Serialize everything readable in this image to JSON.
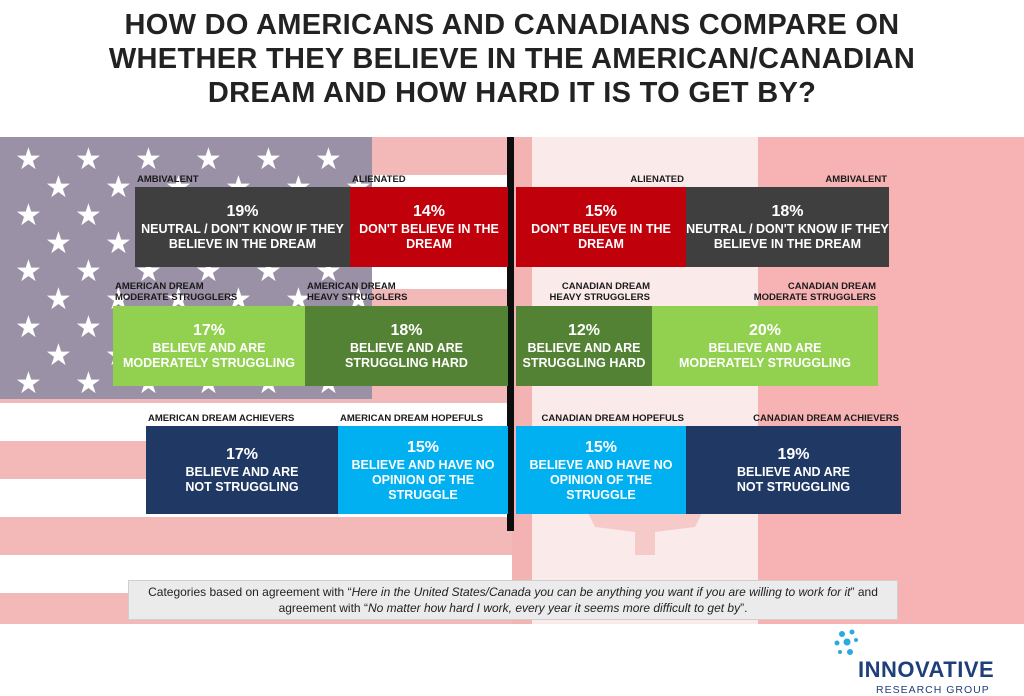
{
  "title": "HOW DO AMERICANS AND CANADIANS COMPARE ON WHETHER THEY BELIEVE IN THE AMERICAN/CANADIAN DREAM AND HOW HARD IT IS TO GET BY?",
  "colors": {
    "ambivalent": "#3f3f3f",
    "alienated": "#c0000b",
    "heavy_strugglers": "#548235",
    "moderate_strugglers": "#92d050",
    "achievers": "#203864",
    "hopefuls": "#00b0f0"
  },
  "chart_data": {
    "type": "bar",
    "orientation": "horizontal-stacked",
    "unit": "%",
    "countries": [
      "United States",
      "Canada"
    ],
    "rows": [
      {
        "usa": [
          {
            "label": "AMBIVALENT",
            "value": 19,
            "display": "19%",
            "desc": "NEUTRAL / DON'T KNOW IF THEY\nBELIEVE IN THE DREAM",
            "color_key": "ambivalent"
          },
          {
            "label": "ALIENATED",
            "value": 14,
            "display": "14%",
            "desc": "DON'T BELIEVE IN THE\nDREAM",
            "color_key": "alienated"
          }
        ],
        "canada": [
          {
            "label": "ALIENATED",
            "value": 15,
            "display": "15%",
            "desc": "DON'T BELIEVE IN THE\nDREAM",
            "color_key": "alienated"
          },
          {
            "label": "AMBIVALENT",
            "value": 18,
            "display": "18%",
            "desc": "NEUTRAL / DON'T KNOW IF THEY\nBELIEVE IN THE DREAM",
            "color_key": "ambivalent"
          }
        ]
      },
      {
        "usa": [
          {
            "label": "AMERICAN DREAM\nMODERATE STRUGGLERS",
            "value": 17,
            "display": "17%",
            "desc": "BELIEVE AND ARE\nMODERATELY STRUGGLING",
            "color_key": "moderate_strugglers"
          },
          {
            "label": "AMERICAN DREAM\nHEAVY STRUGGLERS",
            "value": 18,
            "display": "18%",
            "desc": "BELIEVE AND ARE\nSTRUGGLING HARD",
            "color_key": "heavy_strugglers"
          }
        ],
        "canada": [
          {
            "label": "CANADIAN DREAM\nHEAVY STRUGGLERS",
            "value": 12,
            "display": "12%",
            "desc": "BELIEVE AND ARE\nSTRUGGLING HARD",
            "color_key": "heavy_strugglers"
          },
          {
            "label": "CANADIAN DREAM\nMODERATE STRUGGLERS",
            "value": 20,
            "display": "20%",
            "desc": "BELIEVE AND ARE\nMODERATELY STRUGGLING",
            "color_key": "moderate_strugglers"
          }
        ]
      },
      {
        "usa": [
          {
            "label": "AMERICAN DREAM ACHIEVERS",
            "value": 17,
            "display": "17%",
            "desc": "BELIEVE AND ARE\nNOT STRUGGLING",
            "color_key": "achievers"
          },
          {
            "label": "AMERICAN DREAM HOPEFULS",
            "value": 15,
            "display": "15%",
            "desc": "BELIEVE AND HAVE NO\nOPINION OF THE STRUGGLE",
            "color_key": "hopefuls"
          }
        ],
        "canada": [
          {
            "label": "CANADIAN DREAM HOPEFULS",
            "value": 15,
            "display": "15%",
            "desc": "BELIEVE AND HAVE NO\nOPINION OF THE STRUGGLE",
            "color_key": "hopefuls"
          },
          {
            "label": "CANADIAN DREAM ACHIEVERS",
            "value": 19,
            "display": "19%",
            "desc": "BELIEVE AND ARE\nNOT STRUGGLING",
            "color_key": "achievers"
          }
        ]
      }
    ]
  },
  "note": {
    "part1": "Categories based on agreement with “",
    "quote1": "Here in the United States/Canada you can be anything you want if you are willing to work for it",
    "part2": "” and agreement with “",
    "quote2": "No matter how hard I work, every year it seems more difficult to get by",
    "part3": "”."
  },
  "logo": {
    "name": "INNOVATIVE",
    "sub": "RESEARCH GROUP",
    "dot_color": "#29abe2",
    "text_color": "#1f3f7a"
  }
}
